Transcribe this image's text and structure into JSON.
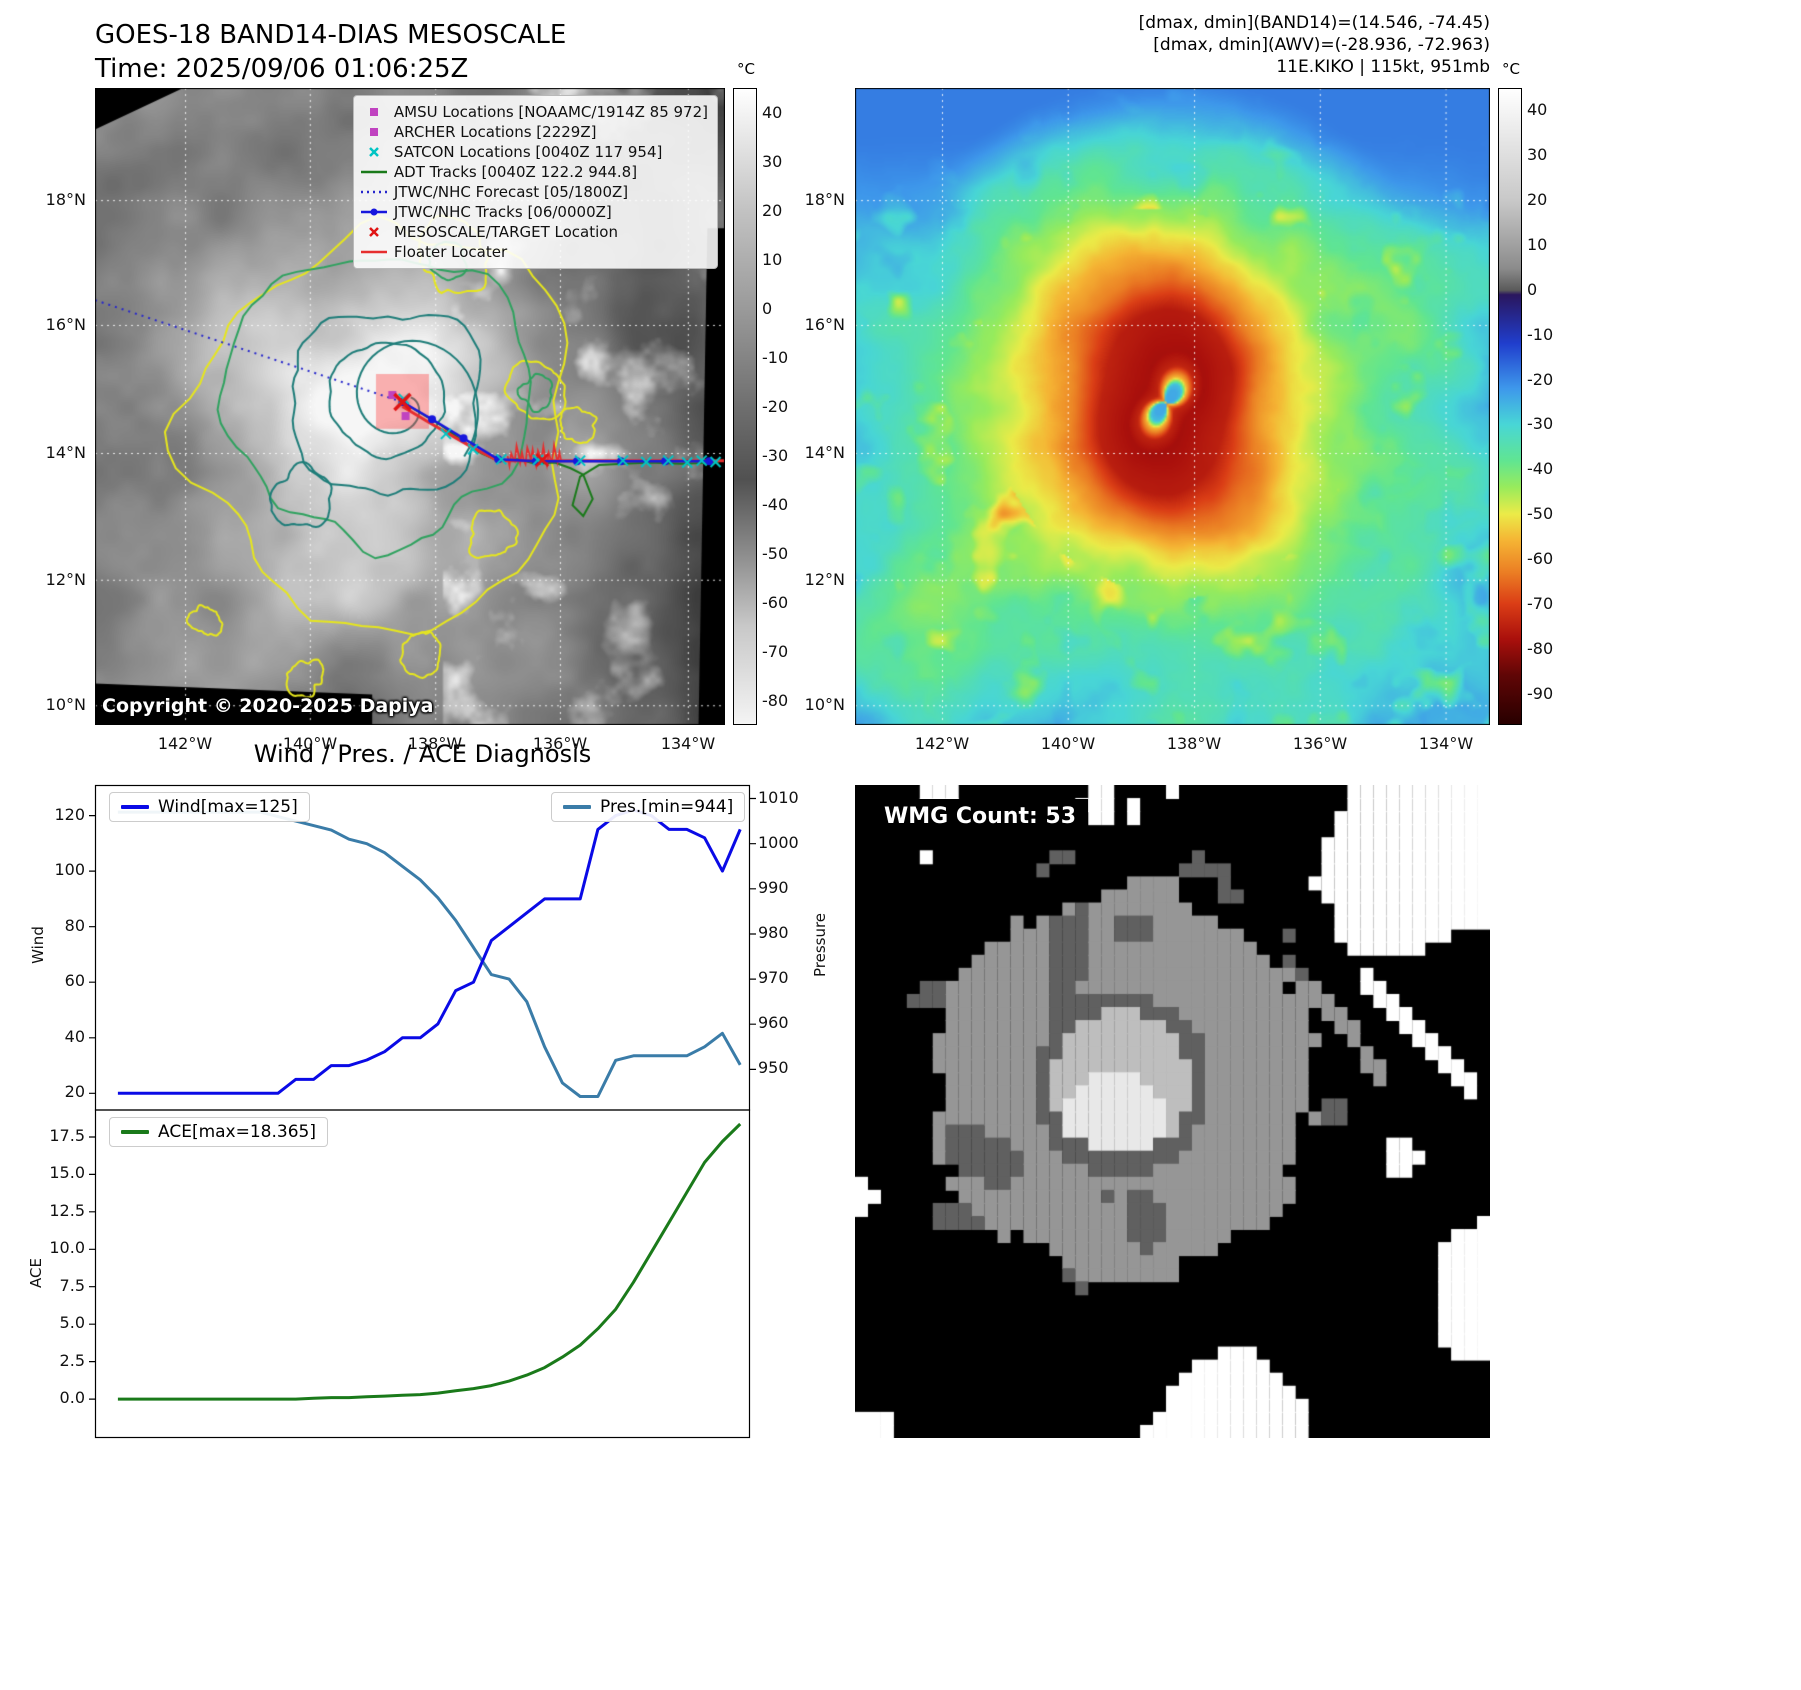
{
  "panels": {
    "tl": {
      "title": "GOES-18 BAND14-DIAS MESOSCALE",
      "subtitle": "Time: 2025/09/06 01:06:25Z",
      "copyright": "Copyright © 2020-2025 Dapiya",
      "colorbar_unit": "°C",
      "colorbar_ticks": [
        40,
        30,
        20,
        10,
        0,
        -10,
        -20,
        -30,
        -40,
        -50,
        -60,
        -70,
        -80
      ],
      "lat_ticks": [
        "18°N",
        "16°N",
        "14°N",
        "12°N",
        "10°N"
      ],
      "lon_ticks": [
        "142°W",
        "140°W",
        "138°W",
        "136°W",
        "134°W"
      ],
      "legend": [
        {
          "label": "AMSU Locations [NOAAMC/1914Z 85 972]",
          "marker": "square",
          "color": "#c043c0"
        },
        {
          "label": "ARCHER Locations [2229Z]",
          "marker": "square",
          "color": "#c043c0"
        },
        {
          "label": "SATCON Locations [0040Z 117 954]",
          "marker": "x",
          "color": "#00c4c4"
        },
        {
          "label": "ADT Tracks [0040Z 122.2 944.8]",
          "marker": "line",
          "color": "#1a7a1a"
        },
        {
          "label": "JTWC/NHC Forecast [05/1800Z]",
          "marker": "dotted",
          "color": "#2626cc"
        },
        {
          "label": "JTWC/NHC Tracks [06/0000Z]",
          "marker": "line-marker",
          "color": "#1717dd"
        },
        {
          "label": "MESOSCALE/TARGET Location",
          "marker": "x",
          "color": "#e01414"
        },
        {
          "label": "Floater Locater",
          "marker": "line",
          "color": "#e62e2e"
        }
      ]
    },
    "tr": {
      "header": [
        "[dmax, dmin](BAND14)=(14.546, -74.45)",
        "[dmax, dmin](AWV)=(-28.936, -72.963)",
        "11E.KIKO | 115kt, 951mb"
      ],
      "colorbar_unit": "°C",
      "colorbar_ticks": [
        40,
        30,
        20,
        10,
        0,
        -10,
        -20,
        -30,
        -40,
        -50,
        -60,
        -70,
        -80,
        -90
      ],
      "lat_ticks": [
        "18°N",
        "16°N",
        "14°N",
        "12°N",
        "10°N"
      ],
      "lon_ticks": [
        "142°W",
        "140°W",
        "138°W",
        "136°W",
        "134°W"
      ]
    },
    "bl": {
      "title": "Wind / Pres. / ACE Diagnosis",
      "wind_legend": "Wind[max=125]",
      "pres_legend": "Pres.[min=944]",
      "ace_legend": "ACE[max=18.365]",
      "wind_axis_label": "Wind",
      "pres_axis_label": "Pressure",
      "ace_axis_label": "ACE"
    },
    "br": {
      "label": "WMG Count: 53"
    }
  },
  "chart_data": [
    {
      "type": "line",
      "title": "Wind / Pres. / ACE Diagnosis",
      "x_axis": "time (unlabeled)",
      "series": [
        {
          "name": "Wind[max=125]",
          "color": "#0a0ae6",
          "axis": "left",
          "values": [
            20,
            20,
            20,
            20,
            20,
            20,
            20,
            20,
            20,
            20,
            25,
            25,
            30,
            30,
            32,
            35,
            40,
            40,
            45,
            57,
            60,
            75,
            80,
            85,
            90,
            90,
            90,
            115,
            120,
            122,
            120,
            115,
            115,
            112,
            100,
            115
          ]
        },
        {
          "name": "Pres.[min=944]",
          "color": "#3a7ca8",
          "axis": "right",
          "values": [
            1007,
            1007,
            1007,
            1007,
            1007,
            1007,
            1007,
            1007,
            1007,
            1006,
            1005,
            1004,
            1003,
            1001,
            1000,
            998,
            995,
            992,
            988,
            983,
            977,
            971,
            970,
            965,
            955,
            947,
            944,
            944,
            952,
            953,
            953,
            953,
            953,
            955,
            958,
            951
          ]
        }
      ],
      "left_label": "Wind",
      "right_label": "Pressure",
      "left_ticks": [
        20,
        40,
        60,
        80,
        100,
        120
      ],
      "right_ticks": [
        950,
        960,
        970,
        980,
        990,
        1000,
        1010
      ],
      "left_ylim": [
        14,
        131
      ],
      "right_ylim": [
        941,
        1013
      ],
      "legend_position": "top-left / top-right",
      "grid": false
    },
    {
      "type": "line",
      "title": "ACE",
      "series": [
        {
          "name": "ACE[max=18.365]",
          "color": "#1a7a1a",
          "values": [
            0,
            0,
            0,
            0,
            0,
            0,
            0,
            0,
            0,
            0,
            0,
            0.05,
            0.1,
            0.1,
            0.15,
            0.2,
            0.25,
            0.3,
            0.4,
            0.55,
            0.7,
            0.9,
            1.2,
            1.6,
            2.1,
            2.8,
            3.6,
            4.7,
            6.0,
            7.8,
            9.8,
            11.8,
            13.8,
            15.8,
            17.2,
            18.365
          ]
        }
      ],
      "ylabel": "ACE",
      "ticks": [
        0,
        2.5,
        5,
        7.5,
        10,
        12.5,
        15,
        17.5
      ],
      "ylim": [
        -2.6,
        19.3
      ],
      "legend_position": "top-left",
      "grid": false
    }
  ]
}
